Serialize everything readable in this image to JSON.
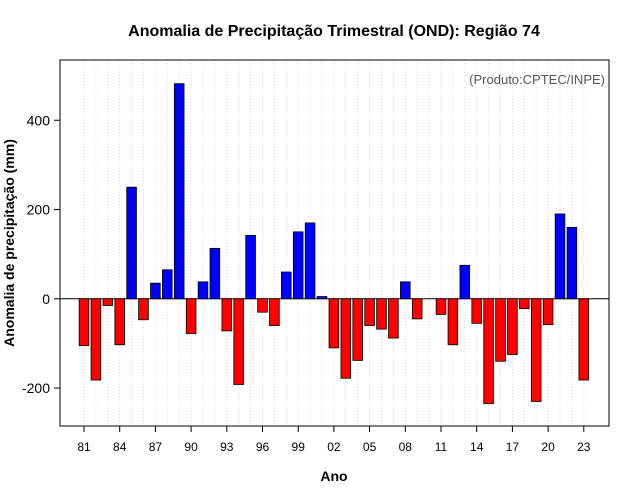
{
  "chart_data": {
    "type": "bar",
    "title": "Anomalia de Precipitação Trimestral (OND): Região 74",
    "xlabel": "Ano",
    "ylabel": "Anomalia de precipitação (mm)",
    "annotation": "(Produto:CPTEC/INPE)",
    "ylim": [
      -285,
      535
    ],
    "yticks": [
      -200,
      0,
      200,
      400
    ],
    "xtick_labels": [
      "81",
      "84",
      "87",
      "90",
      "93",
      "96",
      "99",
      "02",
      "05",
      "08",
      "11",
      "14",
      "17",
      "20",
      "23"
    ],
    "grid": "vertical dotted lines per year",
    "colors": {
      "positive": "#0000ff",
      "negative": "#ff0000"
    },
    "categories": [
      "1981",
      "1982",
      "1983",
      "1984",
      "1985",
      "1986",
      "1987",
      "1988",
      "1989",
      "1990",
      "1991",
      "1992",
      "1993",
      "1994",
      "1995",
      "1996",
      "1997",
      "1998",
      "1999",
      "2000",
      "2001",
      "2002",
      "2003",
      "2004",
      "2005",
      "2006",
      "2007",
      "2008",
      "2009",
      "2010",
      "2011",
      "2012",
      "2013",
      "2014",
      "2015",
      "2016",
      "2017",
      "2018",
      "2019",
      "2020",
      "2021",
      "2022",
      "2023"
    ],
    "values": [
      -105,
      -182,
      -15,
      -103,
      250,
      -47,
      35,
      65,
      482,
      -78,
      38,
      113,
      -72,
      -192,
      142,
      -30,
      -60,
      60,
      150,
      170,
      5,
      -110,
      -178,
      -138,
      -60,
      -68,
      -88,
      38,
      -45,
      0,
      -35,
      -103,
      75,
      -55,
      -235,
      -140,
      -125,
      -22,
      -230,
      -58,
      190,
      160,
      -182
    ]
  }
}
